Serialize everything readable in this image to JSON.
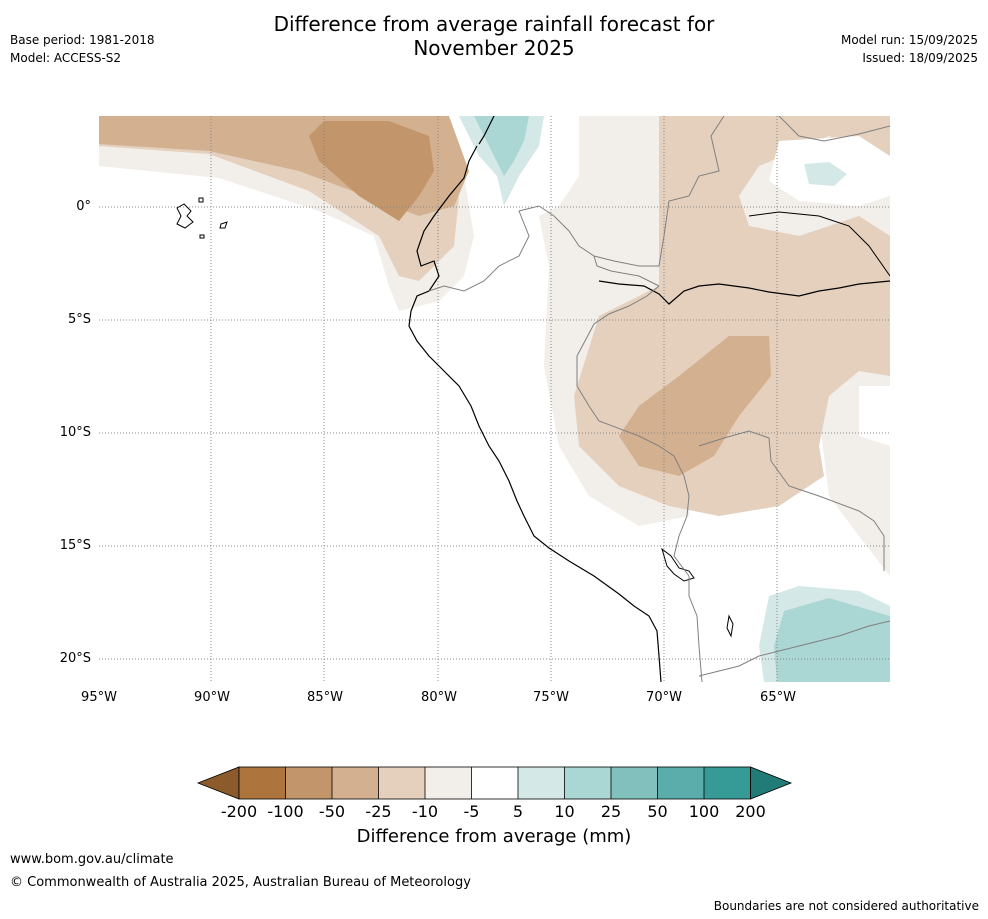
{
  "header": {
    "base_period": "Base period: 1981-2018",
    "model": "Model: ACCESS-S2",
    "title_line1": "Difference from average rainfall forecast for",
    "title_line2": "November 2025",
    "model_run": "Model run: 15/09/2025",
    "issued": "Issued: 18/09/2025"
  },
  "map": {
    "latitude_labels": [
      "0°",
      "5°S",
      "10°S",
      "15°S",
      "20°S"
    ],
    "longitude_labels": [
      "95°W",
      "90°W",
      "85°W",
      "80°W",
      "75°W",
      "70°W",
      "65°W"
    ]
  },
  "colorbar": {
    "title": "Difference from average (mm)",
    "ticks": [
      "-200",
      "-100",
      "-50",
      "-25",
      "-10",
      "-5",
      "5",
      "10",
      "25",
      "50",
      "100",
      "200"
    ],
    "colors": {
      "lt_neg200": "#8c5a2b",
      "neg200_neg100": "#ad743e",
      "neg100_neg50": "#c2956a",
      "neg50_neg25": "#d3b08f",
      "neg25_neg10": "#e4d0bd",
      "neg10_neg5": "#f2eee9",
      "neg5_5": "#ffffff",
      "5_10": "#d4e9e7",
      "10_25": "#aad6d3",
      "25_50": "#82c0bd",
      "50_100": "#5aadaa",
      "100_200": "#369b96",
      "gt_200": "#217c78"
    }
  },
  "footer": {
    "website": "www.bom.gov.au/climate",
    "copyright": "© Commonwealth of Australia 2025, Australian Bureau of Meteorology",
    "disclaimer": "Boundaries are not considered authoritative"
  }
}
